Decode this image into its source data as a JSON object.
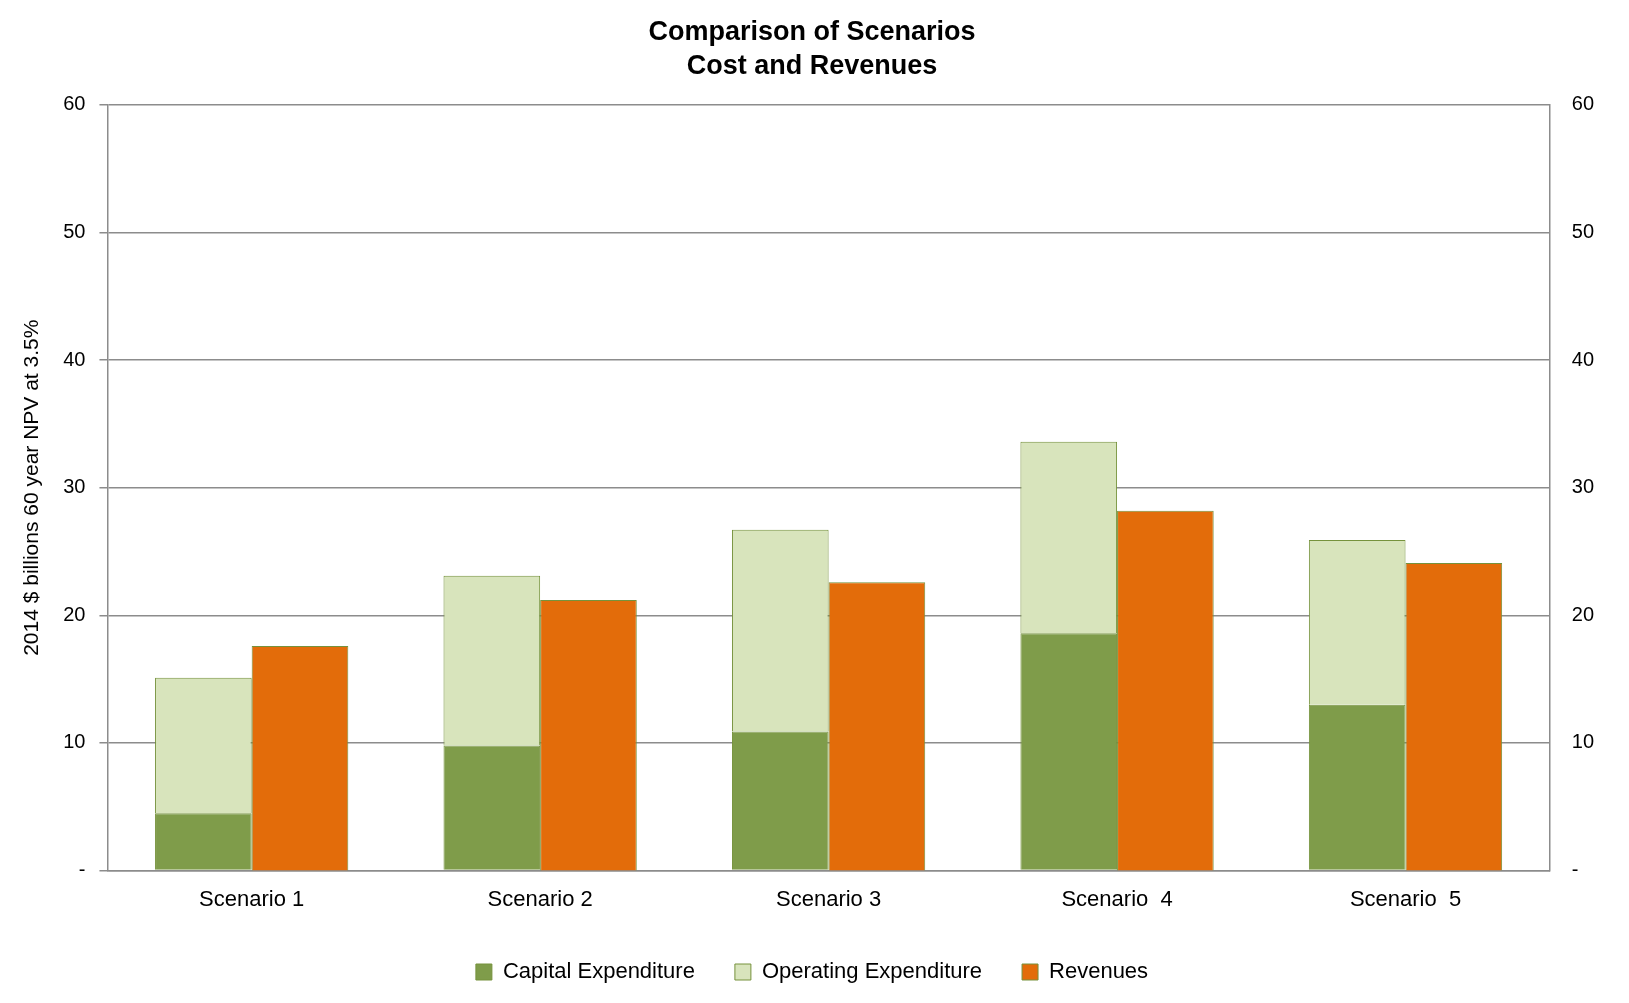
{
  "chart_data": {
    "type": "bar",
    "title": "Comparison of Scenarios",
    "subtitle": "Cost and Revenues",
    "ylabel": "2014 $ billions 60 year NPV at 3.5%",
    "categories": [
      "Scenario 1",
      "Scenario 2",
      "Scenario 3",
      "Scenario  4",
      "Scenario  5"
    ],
    "stacked": true,
    "series": [
      {
        "name": "Capital Expenditure",
        "color": "#7f9c4a",
        "values": [
          4.5,
          9.8,
          10.9,
          18.6,
          13.0
        ]
      },
      {
        "name": "Operating Expenditure",
        "color": "#d8e4bc",
        "values": [
          10.6,
          13.3,
          15.8,
          15.0,
          12.9
        ]
      },
      {
        "name": "Revenues",
        "color": "#e36c0a",
        "axis": "y2",
        "values": [
          17.6,
          21.2,
          22.6,
          28.2,
          24.1
        ]
      }
    ],
    "ylim": [
      0,
      60
    ],
    "yticks": [
      {
        "value": 0,
        "label": "-"
      },
      10,
      20,
      30,
      40,
      50,
      60
    ],
    "y2lim": [
      0,
      60
    ],
    "y2ticks": [
      {
        "value": 0,
        "label": "-"
      },
      10,
      20,
      30,
      40,
      50,
      60
    ],
    "grid": "y",
    "legend": "bottom"
  }
}
